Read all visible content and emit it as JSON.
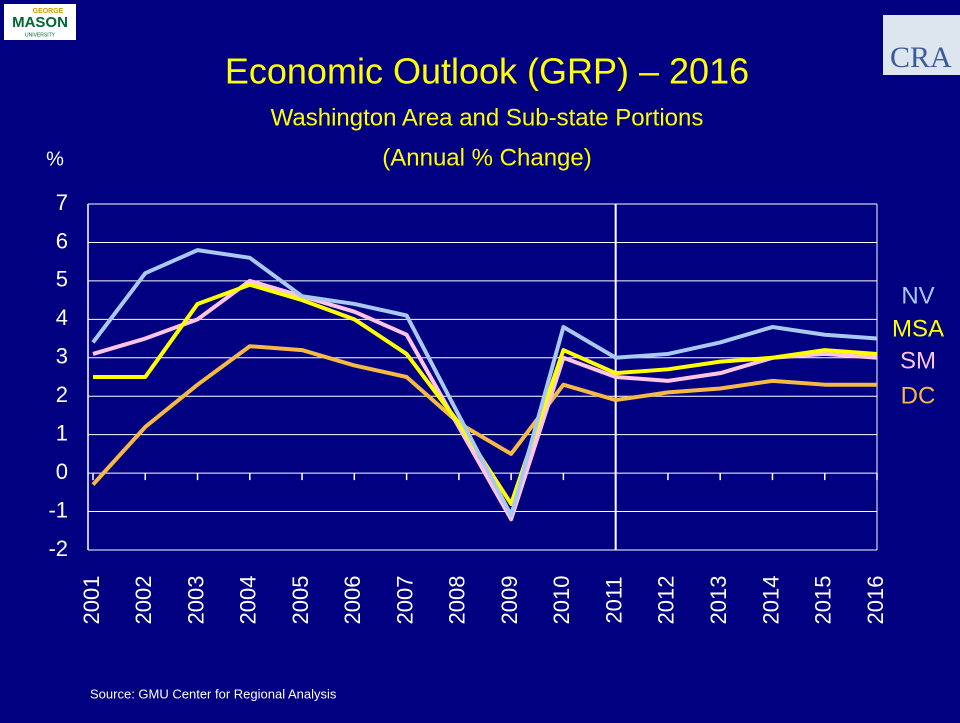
{
  "chart_data": {
    "type": "line",
    "title": "Economic Outlook (GRP) – 2016",
    "subtitle": "Washington Area and Sub-state Portions",
    "subtitle2": "(Annual % Change)",
    "y_label": "%",
    "source": "Source: GMU Center for Regional Analysis",
    "logo_left": [
      "GEORGE",
      "MASON",
      "UNIVERSITY"
    ],
    "logo_right": "CRA",
    "categories": [
      "2001",
      "2002",
      "2003",
      "2004",
      "2005",
      "2006",
      "2007",
      "2008",
      "2009",
      "2010",
      "2011",
      "2012",
      "2013",
      "2014",
      "2015",
      "2016"
    ],
    "divider_category": "2011",
    "series": [
      {
        "name": "NV",
        "color": "#a9c9f0",
        "values": [
          3.4,
          5.2,
          5.8,
          5.6,
          4.6,
          4.4,
          4.1,
          1.5,
          -1.1,
          3.8,
          3.0,
          3.1,
          3.4,
          3.8,
          3.6,
          3.5
        ]
      },
      {
        "name": "MSA",
        "color": "#ffff00",
        "values": [
          2.5,
          2.5,
          4.4,
          4.9,
          4.5,
          4.0,
          3.1,
          1.3,
          -0.8,
          3.2,
          2.6,
          2.7,
          2.9,
          3.0,
          3.2,
          3.1
        ]
      },
      {
        "name": "SM",
        "color": "#ffc4e6",
        "values": [
          3.1,
          3.5,
          4.0,
          5.0,
          4.6,
          4.2,
          3.6,
          1.2,
          -1.2,
          3.0,
          2.5,
          2.4,
          2.6,
          3.0,
          3.1,
          3.0
        ]
      },
      {
        "name": "DC",
        "color": "#f5b944",
        "values": [
          -0.3,
          1.2,
          2.3,
          3.3,
          3.2,
          2.8,
          2.5,
          1.3,
          0.5,
          2.3,
          1.9,
          2.1,
          2.2,
          2.4,
          2.3,
          2.3
        ]
      }
    ],
    "ylim": [
      -2,
      7
    ],
    "yticks": [
      -2,
      -1,
      0,
      1,
      2,
      3,
      4,
      5,
      6,
      7
    ],
    "grid": true
  }
}
